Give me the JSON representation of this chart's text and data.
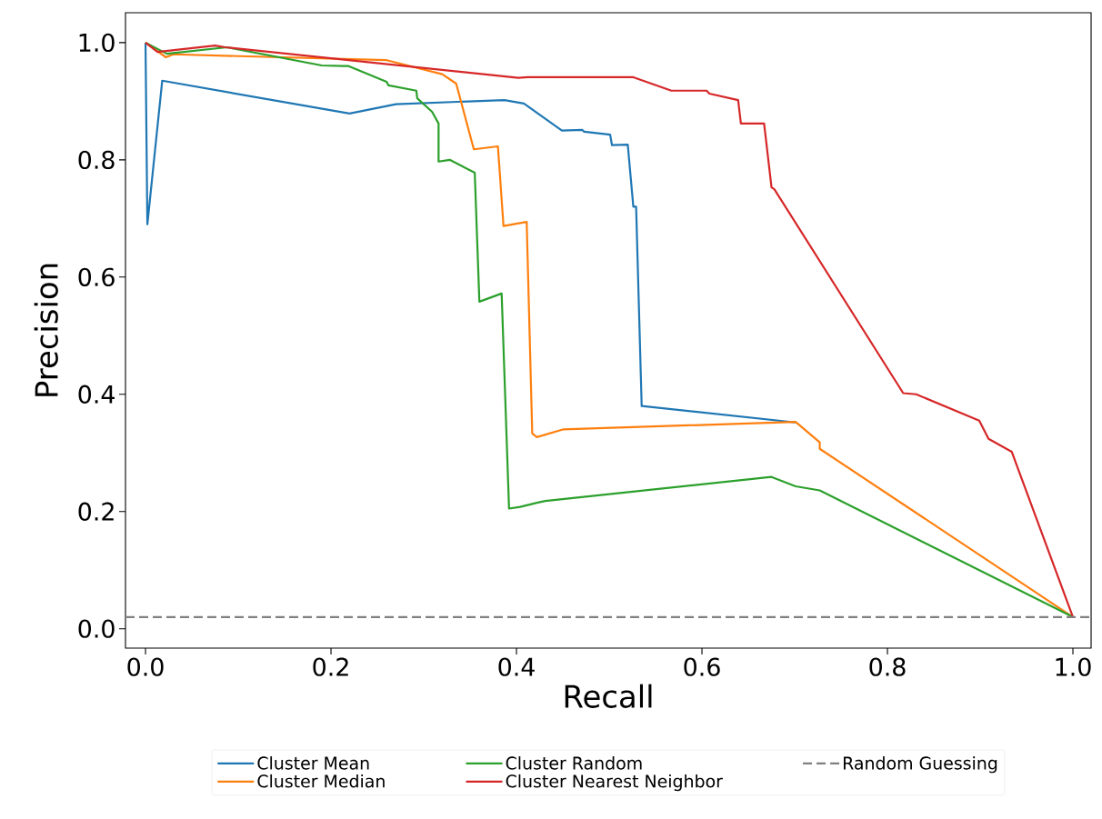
{
  "chart_data": {
    "type": "line",
    "xlabel": "Recall",
    "ylabel": "Precision",
    "xlim": [
      -0.0216,
      1.0196
    ],
    "ylim": [
      -0.033,
      1.051
    ],
    "xticks": [
      {
        "value": 0,
        "label": "0.0"
      },
      {
        "value": 0.2,
        "label": "0.2"
      },
      {
        "value": 0.4,
        "label": "0.4"
      },
      {
        "value": 0.6,
        "label": "0.6"
      },
      {
        "value": 0.8,
        "label": "0.8"
      },
      {
        "value": 1,
        "label": "1.0"
      }
    ],
    "yticks": [
      {
        "value": 0,
        "label": "0.0"
      },
      {
        "value": 0.2,
        "label": "0.2"
      },
      {
        "value": 0.4,
        "label": "0.4"
      },
      {
        "value": 0.6,
        "label": "0.6"
      },
      {
        "value": 0.8,
        "label": "0.8"
      },
      {
        "value": 1,
        "label": "1.0"
      }
    ],
    "grid": false,
    "legend": "bottom",
    "marker": "none",
    "line_style": "solid",
    "series": [
      {
        "name": "Cluster Mean",
        "color": "#1f77b4",
        "x": [
          0,
          0.002,
          0.018,
          0.22,
          0.27,
          0.387,
          0.408,
          0.449,
          0.471,
          0.473,
          0.501,
          0.503,
          0.52,
          0.526,
          0.529,
          0.535,
          0.701
        ],
        "values": [
          1.0,
          0.69,
          0.935,
          0.879,
          0.895,
          0.902,
          0.896,
          0.85,
          0.851,
          0.848,
          0.843,
          0.825,
          0.826,
          0.72,
          0.72,
          0.38,
          0.352
        ]
      },
      {
        "name": "Cluster Median",
        "color": "#ff7f0e",
        "x": [
          0,
          0.022,
          0.03,
          0.26,
          0.32,
          0.335,
          0.354,
          0.38,
          0.386,
          0.411,
          0.417,
          0.422,
          0.45,
          0.701,
          0.727,
          0.727,
          1.0
        ],
        "values": [
          1.0,
          0.975,
          0.98,
          0.97,
          0.946,
          0.93,
          0.818,
          0.823,
          0.687,
          0.694,
          0.333,
          0.327,
          0.34,
          0.353,
          0.318,
          0.307,
          0.02
        ]
      },
      {
        "name": "Cluster Random",
        "color": "#2ca02c",
        "x": [
          0,
          0.023,
          0.088,
          0.19,
          0.213,
          0.219,
          0.26,
          0.262,
          0.292,
          0.293,
          0.309,
          0.316,
          0.316,
          0.328,
          0.355,
          0.36,
          0.384,
          0.392,
          0.404,
          0.422,
          0.431,
          0.675,
          0.701,
          0.727,
          1.0
        ],
        "values": [
          1.0,
          0.981,
          0.992,
          0.961,
          0.96,
          0.96,
          0.933,
          0.927,
          0.918,
          0.905,
          0.882,
          0.862,
          0.797,
          0.8,
          0.778,
          0.558,
          0.572,
          0.205,
          0.208,
          0.215,
          0.218,
          0.259,
          0.243,
          0.236,
          0.02
        ]
      },
      {
        "name": "Cluster Nearest Neighbor",
        "color": "#d62728",
        "x": [
          0,
          0.013,
          0.075,
          0.086,
          0.402,
          0.412,
          0.526,
          0.567,
          0.605,
          0.608,
          0.639,
          0.642,
          0.667,
          0.675,
          0.678,
          0.817,
          0.831,
          0.899,
          0.909,
          0.934,
          1.0
        ],
        "values": [
          1.0,
          0.984,
          0.995,
          0.992,
          0.94,
          0.941,
          0.941,
          0.918,
          0.918,
          0.913,
          0.902,
          0.862,
          0.862,
          0.753,
          0.75,
          0.402,
          0.4,
          0.355,
          0.324,
          0.302,
          0.02
        ]
      }
    ],
    "ref_lines": [
      {
        "axis": "y",
        "value": 0.02,
        "label": "Random Guessing",
        "color": "#808080",
        "line_style": "dashed"
      }
    ]
  }
}
